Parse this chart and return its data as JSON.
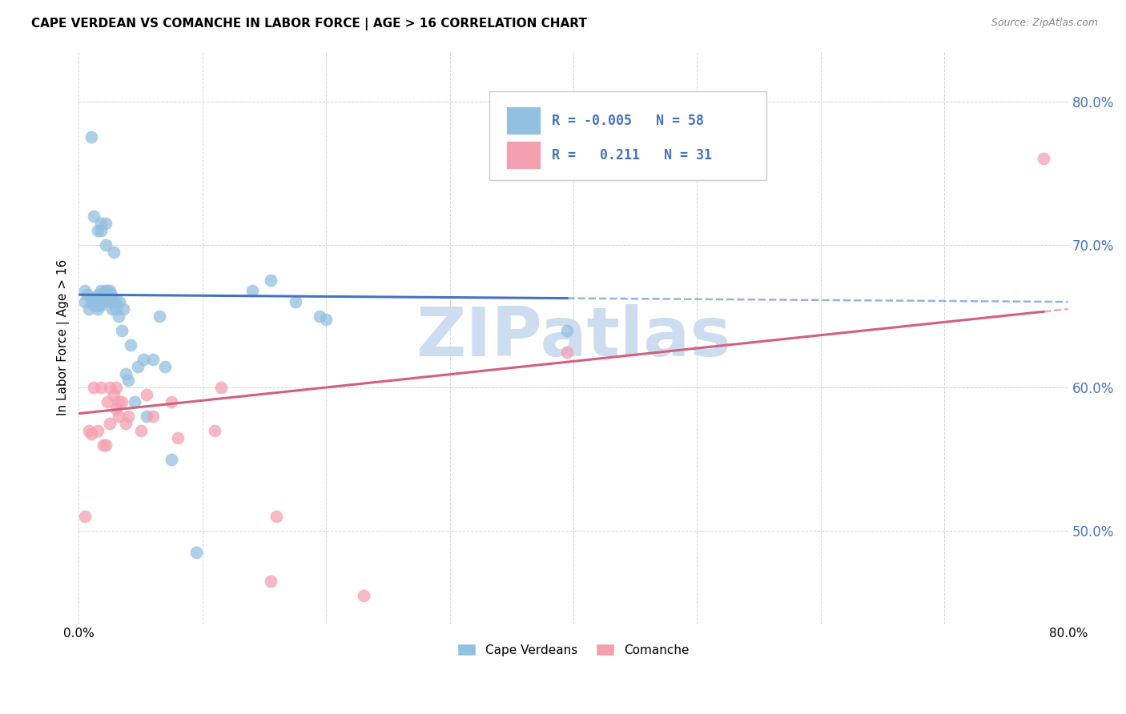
{
  "title": "CAPE VERDEAN VS COMANCHE IN LABOR FORCE | AGE > 16 CORRELATION CHART",
  "source": "Source: ZipAtlas.com",
  "ylabel": "In Labor Force | Age > 16",
  "xlim": [
    0.0,
    0.8
  ],
  "ylim": [
    0.435,
    0.835
  ],
  "yticks": [
    0.5,
    0.6,
    0.7,
    0.8
  ],
  "ytick_labels": [
    "50.0%",
    "60.0%",
    "70.0%",
    "80.0%"
  ],
  "xtick_positions": [
    0.0,
    0.1,
    0.2,
    0.3,
    0.4,
    0.5,
    0.6,
    0.7,
    0.8
  ],
  "xtick_labels": [
    "0.0%",
    "",
    "",
    "",
    "",
    "",
    "",
    "",
    "80.0%"
  ],
  "watermark": "ZIPatlas",
  "watermark_color": "#ccddf0",
  "cape_verdean_color": "#92c0e0",
  "comanche_color": "#f4a0b0",
  "trend_cv_color": "#4472c4",
  "trend_co_color": "#d06080",
  "R_cv": -0.005,
  "R_co": 0.211,
  "N_cv": 58,
  "N_co": 31,
  "legend_label_cv": "Cape Verdeans",
  "legend_label_co": "Comanche",
  "cape_verdean_x": [
    0.005,
    0.005,
    0.007,
    0.008,
    0.01,
    0.01,
    0.01,
    0.012,
    0.012,
    0.012,
    0.013,
    0.015,
    0.015,
    0.015,
    0.016,
    0.017,
    0.018,
    0.018,
    0.018,
    0.018,
    0.02,
    0.02,
    0.02,
    0.021,
    0.022,
    0.022,
    0.023,
    0.025,
    0.025,
    0.025,
    0.026,
    0.027,
    0.028,
    0.028,
    0.03,
    0.03,
    0.032,
    0.033,
    0.035,
    0.036,
    0.038,
    0.04,
    0.042,
    0.045,
    0.048,
    0.052,
    0.055,
    0.06,
    0.065,
    0.07,
    0.075,
    0.14,
    0.155,
    0.175,
    0.195,
    0.2,
    0.395,
    0.095
  ],
  "cape_verdean_y": [
    0.668,
    0.66,
    0.665,
    0.655,
    0.662,
    0.663,
    0.775,
    0.66,
    0.658,
    0.72,
    0.66,
    0.655,
    0.657,
    0.71,
    0.665,
    0.66,
    0.658,
    0.668,
    0.71,
    0.715,
    0.66,
    0.665,
    0.662,
    0.668,
    0.715,
    0.7,
    0.668,
    0.668,
    0.665,
    0.66,
    0.665,
    0.655,
    0.66,
    0.695,
    0.655,
    0.66,
    0.65,
    0.66,
    0.64,
    0.655,
    0.61,
    0.605,
    0.63,
    0.59,
    0.615,
    0.62,
    0.58,
    0.62,
    0.65,
    0.615,
    0.55,
    0.668,
    0.675,
    0.66,
    0.65,
    0.648,
    0.64,
    0.485
  ],
  "comanche_x": [
    0.005,
    0.008,
    0.01,
    0.012,
    0.015,
    0.018,
    0.02,
    0.022,
    0.023,
    0.025,
    0.025,
    0.028,
    0.03,
    0.03,
    0.032,
    0.032,
    0.035,
    0.038,
    0.04,
    0.05,
    0.055,
    0.06,
    0.075,
    0.08,
    0.11,
    0.155,
    0.16,
    0.23,
    0.395,
    0.78,
    0.115
  ],
  "comanche_y": [
    0.51,
    0.57,
    0.568,
    0.6,
    0.57,
    0.6,
    0.56,
    0.56,
    0.59,
    0.575,
    0.6,
    0.595,
    0.585,
    0.6,
    0.58,
    0.59,
    0.59,
    0.575,
    0.58,
    0.57,
    0.595,
    0.58,
    0.59,
    0.565,
    0.57,
    0.465,
    0.51,
    0.455,
    0.625,
    0.76,
    0.6
  ],
  "trend_cv_x_start": 0.0,
  "trend_cv_x_solid_end": 0.395,
  "trend_cv_x_end": 0.8,
  "trend_co_x_start": 0.0,
  "trend_co_x_solid_end": 0.78,
  "trend_co_x_end": 0.8,
  "trend_cv_y_start": 0.665,
  "trend_cv_y_end": 0.66,
  "trend_co_y_start": 0.582,
  "trend_co_y_end": 0.655
}
